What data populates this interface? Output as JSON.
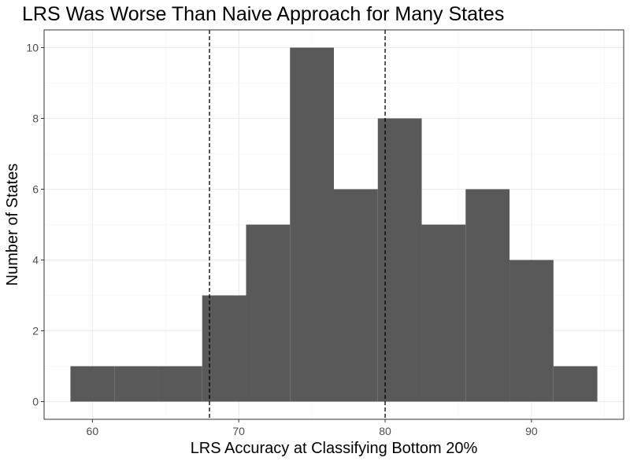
{
  "chart_data": {
    "type": "bar",
    "subtype": "histogram",
    "title": "LRS Was Worse Than Naive Approach for Many States",
    "xlabel": "LRS Accuracy at Classifying Bottom 20%",
    "ylabel": "Number of States",
    "bin_width": 3,
    "bins": [
      {
        "start": 58.5,
        "end": 61.5,
        "count": 1
      },
      {
        "start": 61.5,
        "end": 64.5,
        "count": 1
      },
      {
        "start": 64.5,
        "end": 67.5,
        "count": 1
      },
      {
        "start": 67.5,
        "end": 70.5,
        "count": 3
      },
      {
        "start": 70.5,
        "end": 73.5,
        "count": 5
      },
      {
        "start": 73.5,
        "end": 76.5,
        "count": 10
      },
      {
        "start": 76.5,
        "end": 79.5,
        "count": 6
      },
      {
        "start": 79.5,
        "end": 82.5,
        "count": 8
      },
      {
        "start": 82.5,
        "end": 85.5,
        "count": 5
      },
      {
        "start": 85.5,
        "end": 88.5,
        "count": 6
      },
      {
        "start": 88.5,
        "end": 91.5,
        "count": 4
      },
      {
        "start": 91.5,
        "end": 94.5,
        "count": 1
      }
    ],
    "xlim": [
      56.7,
      96.3
    ],
    "ylim": [
      -0.5,
      10.5
    ],
    "x_ticks": [
      60,
      70,
      80,
      90
    ],
    "x_tick_labels": [
      "60",
      "70",
      "80",
      "90"
    ],
    "y_ticks": [
      0,
      2,
      4,
      6,
      8,
      10
    ],
    "y_tick_labels": [
      "0",
      "2",
      "4",
      "6",
      "8",
      "10"
    ],
    "reference_lines": [
      {
        "x": 68,
        "style": "dashed"
      },
      {
        "x": 80,
        "style": "dashed"
      }
    ],
    "grid": true,
    "legend": "none",
    "colors": {
      "bar": "#595959",
      "panel_border": "#333333",
      "grid_major": "#ebebeb",
      "grid_minor": "#f5f5f5",
      "reference_line": "#000000"
    }
  }
}
